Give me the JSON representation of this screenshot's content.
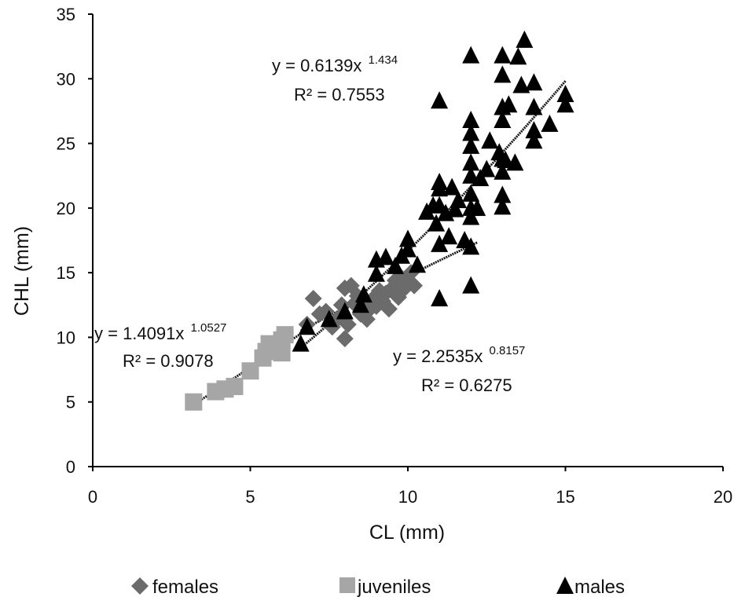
{
  "chart_data": {
    "type": "scatter",
    "title": "",
    "xlabel": "CL (mm)",
    "ylabel": "CHL (mm)",
    "xlim": [
      0,
      20
    ],
    "ylim": [
      0,
      35
    ],
    "xticks": [
      0,
      5,
      10,
      15,
      20
    ],
    "yticks": [
      0,
      5,
      10,
      15,
      20,
      25,
      30,
      35
    ],
    "grid": false,
    "legend_position": "bottom",
    "series": [
      {
        "name": "females",
        "marker": "diamond",
        "color": "#6b6b6b",
        "points": [
          [
            6.8,
            11.0
          ],
          [
            7.0,
            13.0
          ],
          [
            7.2,
            11.8
          ],
          [
            7.4,
            12.0
          ],
          [
            7.6,
            10.8
          ],
          [
            7.8,
            11.5
          ],
          [
            7.9,
            12.5
          ],
          [
            8.0,
            13.8
          ],
          [
            8.0,
            9.9
          ],
          [
            8.1,
            11.0
          ],
          [
            8.2,
            14.0
          ],
          [
            8.3,
            12.6
          ],
          [
            8.4,
            13.2
          ],
          [
            8.5,
            11.8
          ],
          [
            8.6,
            12.9
          ],
          [
            8.7,
            11.4
          ],
          [
            8.8,
            12.2
          ],
          [
            8.9,
            13.0
          ],
          [
            9.0,
            12.4
          ],
          [
            9.1,
            13.6
          ],
          [
            9.2,
            12.8
          ],
          [
            9.3,
            13.4
          ],
          [
            9.4,
            12.2
          ],
          [
            9.5,
            13.8
          ],
          [
            9.6,
            14.4
          ],
          [
            9.7,
            13.1
          ],
          [
            9.8,
            14.6
          ],
          [
            9.9,
            13.8
          ],
          [
            10.0,
            14.2
          ],
          [
            10.1,
            15.0
          ],
          [
            10.2,
            14.0
          ]
        ]
      },
      {
        "name": "juveniles",
        "marker": "square",
        "color": "#a6a6a6",
        "points": [
          [
            3.2,
            5.0
          ],
          [
            3.9,
            5.8
          ],
          [
            4.2,
            6.0
          ],
          [
            4.5,
            6.2
          ],
          [
            5.0,
            7.4
          ],
          [
            5.4,
            8.4
          ],
          [
            5.5,
            8.9
          ],
          [
            5.6,
            9.5
          ],
          [
            5.8,
            9.0
          ],
          [
            6.0,
            8.8
          ],
          [
            6.0,
            9.8
          ],
          [
            6.1,
            10.2
          ]
        ]
      },
      {
        "name": "males",
        "marker": "triangle",
        "color": "#000000",
        "points": [
          [
            6.6,
            9.5
          ],
          [
            6.8,
            10.8
          ],
          [
            7.5,
            11.4
          ],
          [
            8.0,
            12.0
          ],
          [
            8.5,
            12.5
          ],
          [
            8.6,
            13.3
          ],
          [
            9.0,
            14.9
          ],
          [
            9.0,
            16.0
          ],
          [
            9.3,
            16.2
          ],
          [
            9.6,
            15.5
          ],
          [
            9.8,
            16.3
          ],
          [
            10.0,
            17.6
          ],
          [
            10.0,
            16.8
          ],
          [
            10.3,
            15.6
          ],
          [
            10.6,
            19.7
          ],
          [
            10.8,
            20.2
          ],
          [
            10.9,
            18.8
          ],
          [
            11.0,
            20.2
          ],
          [
            11.0,
            22.0
          ],
          [
            11.0,
            21.5
          ],
          [
            11.0,
            17.2
          ],
          [
            11.0,
            28.3
          ],
          [
            11.0,
            13.0
          ],
          [
            11.2,
            19.6
          ],
          [
            11.3,
            17.8
          ],
          [
            11.4,
            21.6
          ],
          [
            11.5,
            19.9
          ],
          [
            11.6,
            20.6
          ],
          [
            11.8,
            17.5
          ],
          [
            12.0,
            19.3
          ],
          [
            12.0,
            21.1
          ],
          [
            12.0,
            22.5
          ],
          [
            12.0,
            23.5
          ],
          [
            12.0,
            24.8
          ],
          [
            12.0,
            25.8
          ],
          [
            12.0,
            26.8
          ],
          [
            12.0,
            20.0
          ],
          [
            12.0,
            17.0
          ],
          [
            12.0,
            14.0
          ],
          [
            12.0,
            31.8
          ],
          [
            12.2,
            20.0
          ],
          [
            12.3,
            22.3
          ],
          [
            12.5,
            23.0
          ],
          [
            12.6,
            25.2
          ],
          [
            12.9,
            24.3
          ],
          [
            13.0,
            20.1
          ],
          [
            13.0,
            21.0
          ],
          [
            13.0,
            22.8
          ],
          [
            13.0,
            23.8
          ],
          [
            13.0,
            26.8
          ],
          [
            13.0,
            27.8
          ],
          [
            13.0,
            30.3
          ],
          [
            13.0,
            31.8
          ],
          [
            13.1,
            23.7
          ],
          [
            13.2,
            28.0
          ],
          [
            13.4,
            23.5
          ],
          [
            13.5,
            31.7
          ],
          [
            13.6,
            29.5
          ],
          [
            13.7,
            33.0
          ],
          [
            14.0,
            25.2
          ],
          [
            14.0,
            26.0
          ],
          [
            14.0,
            27.8
          ],
          [
            14.0,
            29.7
          ],
          [
            14.5,
            26.5
          ],
          [
            15.0,
            28.0
          ],
          [
            15.0,
            28.8
          ]
        ]
      }
    ],
    "trendlines": [
      {
        "series": "juveniles",
        "equation": "y = 1.4091x",
        "exponent": "1.0527",
        "r2": "R² = 0.9078",
        "a": 1.4091,
        "b": 1.0527,
        "x_range": [
          3.2,
          6.6
        ]
      },
      {
        "series": "females",
        "equation": "y = 2.2535x",
        "exponent": "0.8157",
        "r2": "R² = 0.6275",
        "a": 2.2535,
        "b": 0.8157,
        "x_range": [
          6.6,
          12.2
        ]
      },
      {
        "series": "males",
        "equation": "y = 0.6139x",
        "exponent": "1.434",
        "r2": "R² = 0.7553",
        "a": 0.6139,
        "b": 1.434,
        "x_range": [
          6.6,
          15.0
        ]
      }
    ]
  }
}
